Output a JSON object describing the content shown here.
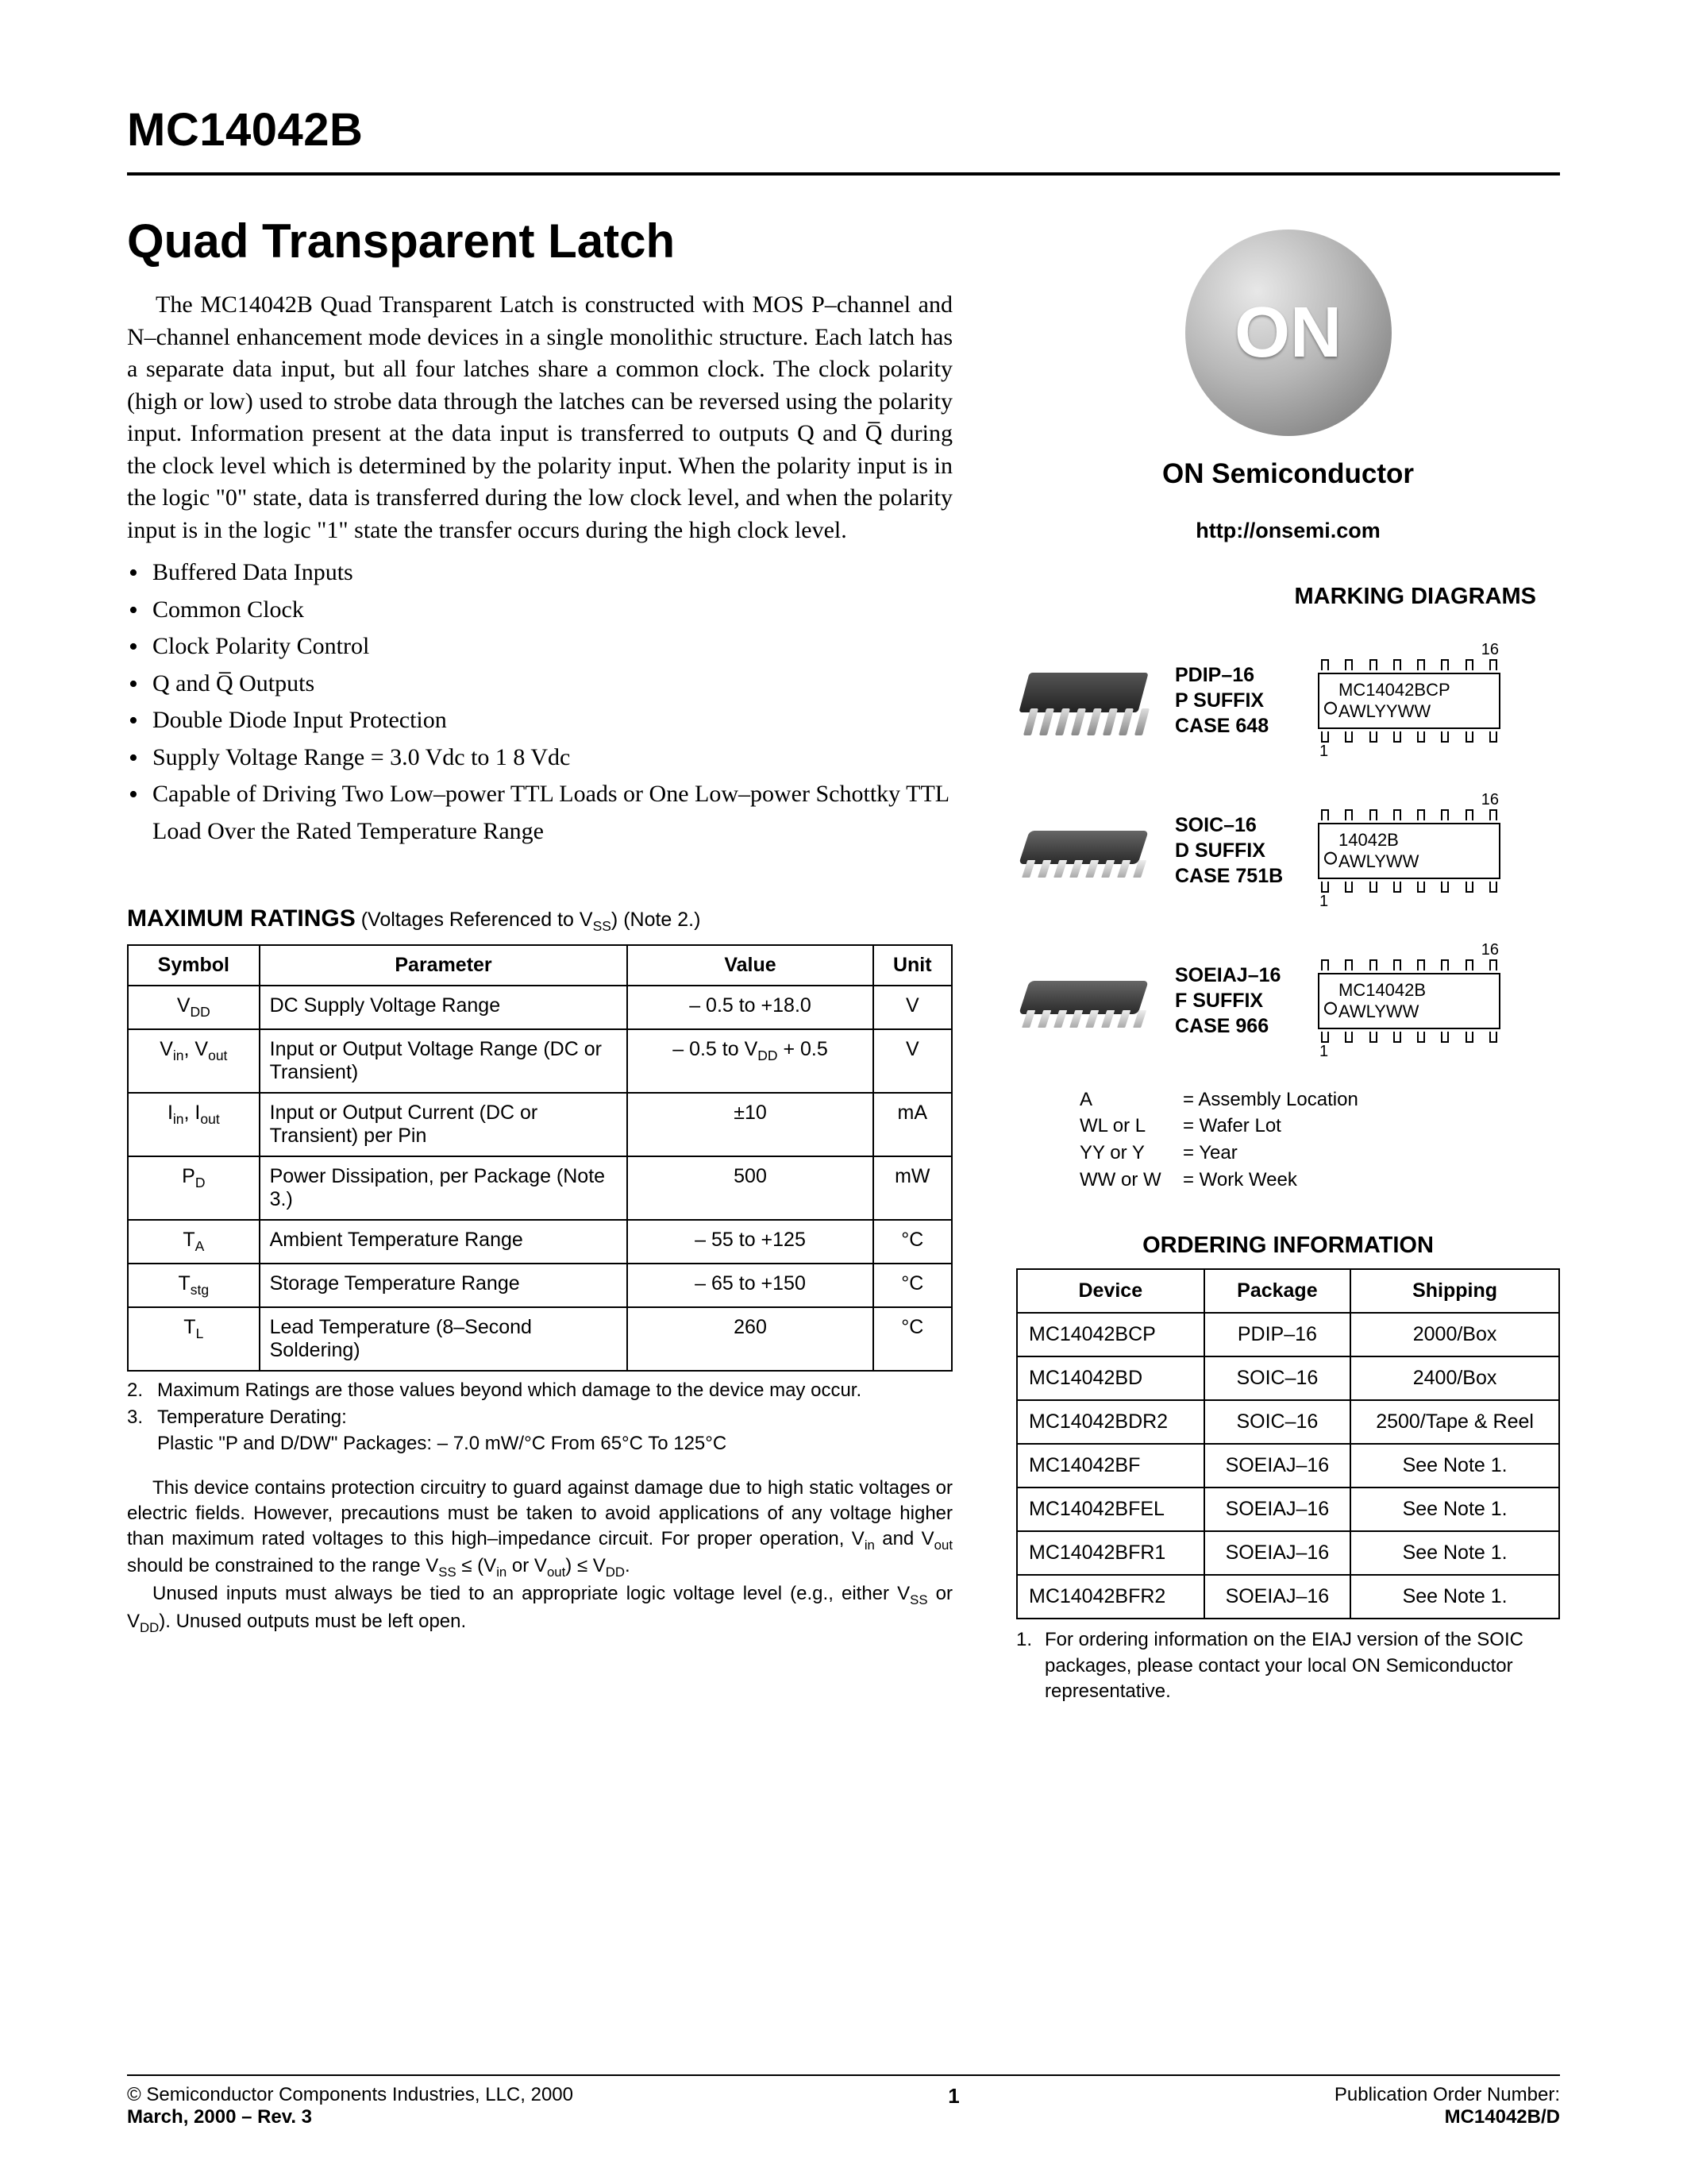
{
  "part_number": "MC14042B",
  "title": "Quad Transparent Latch",
  "description": "The MC14042B Quad Transparent Latch is constructed with MOS P–channel and N–channel enhancement mode devices in a single monolithic structure. Each latch has a separate data input, but all four latches share a common clock. The clock polarity (high or low) used to strobe data through the latches can be reversed using the polarity input. Information present at the data input is transferred to outputs Q and Q̅ during the clock level which is determined by the polarity input. When the polarity input is in the logic \"0\" state, data is transferred during the low clock level, and when the polarity input is in the logic \"1\" state the transfer occurs during the high clock level.",
  "features": [
    "Buffered Data Inputs",
    "Common Clock",
    "Clock Polarity Control",
    "Q and Q̅ Outputs",
    "Double Diode Input Protection",
    "Supply Voltage Range = 3.0 Vdc to 1 8 Vdc",
    "Capable of Driving Two Low–power TTL Loads or One Low–power Schottky TTL Load Over the Rated Temperature Range"
  ],
  "max_ratings": {
    "heading": "MAXIMUM RATINGS",
    "heading_suffix": " (Voltages Referenced to V",
    "heading_suffix2": ") (Note 2.)",
    "headers": {
      "symbol": "Symbol",
      "parameter": "Parameter",
      "value": "Value",
      "unit": "Unit"
    },
    "rows": [
      {
        "symbol_html": "V<span class='sub'>DD</span>",
        "parameter": "DC Supply Voltage Range",
        "value": "– 0.5 to +18.0",
        "unit": "V"
      },
      {
        "symbol_html": "V<span class='sub'>in</span>, V<span class='sub'>out</span>",
        "parameter": "Input or Output Voltage Range (DC or Transient)",
        "value_html": "– 0.5 to V<span class='sub'>DD</span> + 0.5",
        "unit": "V"
      },
      {
        "symbol_html": "I<span class='sub'>in</span>, I<span class='sub'>out</span>",
        "parameter": "Input or Output Current (DC or Transient) per Pin",
        "value": "±10",
        "unit": "mA"
      },
      {
        "symbol_html": "P<span class='sub'>D</span>",
        "parameter": "Power Dissipation, per Package (Note 3.)",
        "value": "500",
        "unit": "mW"
      },
      {
        "symbol_html": "T<span class='sub'>A</span>",
        "parameter": "Ambient Temperature Range",
        "value": "– 55 to +125",
        "unit": "°C"
      },
      {
        "symbol_html": "T<span class='sub'>stg</span>",
        "parameter": "Storage Temperature Range",
        "value": "– 65 to +150",
        "unit": "°C"
      },
      {
        "symbol_html": "T<span class='sub'>L</span>",
        "parameter": "Lead Temperature (8–Second Soldering)",
        "value": "260",
        "unit": "°C"
      }
    ],
    "notes": [
      {
        "n": "2.",
        "t": "Maximum Ratings are those values beyond which damage to the device may occur."
      },
      {
        "n": "3.",
        "t": "Temperature Derating:",
        "t2": "Plastic \"P and D/DW\" Packages: – 7.0 mW/°C From 65°C To 125°C"
      }
    ]
  },
  "disclaimer_html": [
    "This device contains protection circuitry to guard against damage due to high static voltages or electric fields. However, precautions must be taken to avoid applications of any voltage higher than maximum rated voltages to this high–impedance circuit. For proper operation, V<span class='sub'>in</span> and V<span class='sub'>out</span> should be constrained to the range V<span class='sub'>SS</span> ≤ (V<span class='sub'>in</span> or V<span class='sub'>out</span>) ≤ V<span class='sub'>DD</span>.",
    "Unused inputs must always be tied to an appropriate logic voltage level (e.g., either V<span class='sub'>SS</span> or V<span class='sub'>DD</span>). Unused outputs must be left open."
  ],
  "logo": {
    "text": "ON",
    "company": "ON Semiconductor"
  },
  "url": "http://onsemi.com",
  "marking": {
    "title": "MARKING DIAGRAMS",
    "packages": [
      {
        "type": "dip",
        "lines": [
          "PDIP–16",
          "P SUFFIX",
          "CASE 648"
        ],
        "mark": [
          "MC14042BCP",
          "AWLYYWW"
        ],
        "pin_hi": "16",
        "pin_lo": "1"
      },
      {
        "type": "soic",
        "lines": [
          "SOIC–16",
          "D SUFFIX",
          "CASE 751B"
        ],
        "mark": [
          "14042B",
          "AWLYWW"
        ],
        "pin_hi": "16",
        "pin_lo": "1"
      },
      {
        "type": "soic",
        "lines": [
          "SOEIAJ–16",
          "F SUFFIX",
          "CASE 966"
        ],
        "mark": [
          "MC14042B",
          "AWLYWW"
        ],
        "pin_hi": "16",
        "pin_lo": "1"
      }
    ],
    "legend": [
      {
        "k": "A",
        "v": "= Assembly Location"
      },
      {
        "k": "WL or L",
        "v": "= Wafer Lot"
      },
      {
        "k": "YY or Y",
        "v": "= Year"
      },
      {
        "k": "WW or W",
        "v": "= Work Week"
      }
    ]
  },
  "ordering": {
    "title": "ORDERING INFORMATION",
    "headers": {
      "device": "Device",
      "package": "Package",
      "shipping": "Shipping"
    },
    "rows": [
      {
        "device": "MC14042BCP",
        "package": "PDIP–16",
        "shipping": "2000/Box"
      },
      {
        "device": "MC14042BD",
        "package": "SOIC–16",
        "shipping": "2400/Box"
      },
      {
        "device": "MC14042BDR2",
        "package": "SOIC–16",
        "shipping": "2500/Tape & Reel"
      },
      {
        "device": "MC14042BF",
        "package": "SOEIAJ–16",
        "shipping": "See Note 1."
      },
      {
        "device": "MC14042BFEL",
        "package": "SOEIAJ–16",
        "shipping": "See Note 1."
      },
      {
        "device": "MC14042BFR1",
        "package": "SOEIAJ–16",
        "shipping": "See Note 1."
      },
      {
        "device": "MC14042BFR2",
        "package": "SOEIAJ–16",
        "shipping": "See Note 1."
      }
    ],
    "note": {
      "n": "1.",
      "t": "For ordering information on the EIAJ version of the SOIC packages, please contact your local ON Semiconductor representative."
    }
  },
  "footer": {
    "left1": "©  Semiconductor Components Industries, LLC, 2000",
    "left2": "March, 2000 – Rev. 3",
    "page": "1",
    "right1": "Publication Order Number:",
    "right2": "MC14042B/D"
  },
  "colors": {
    "text": "#000000",
    "bg": "#ffffff",
    "rule": "#000000",
    "logo_grad_from": "#e8e8e8",
    "logo_grad_to": "#6a6a6a"
  }
}
